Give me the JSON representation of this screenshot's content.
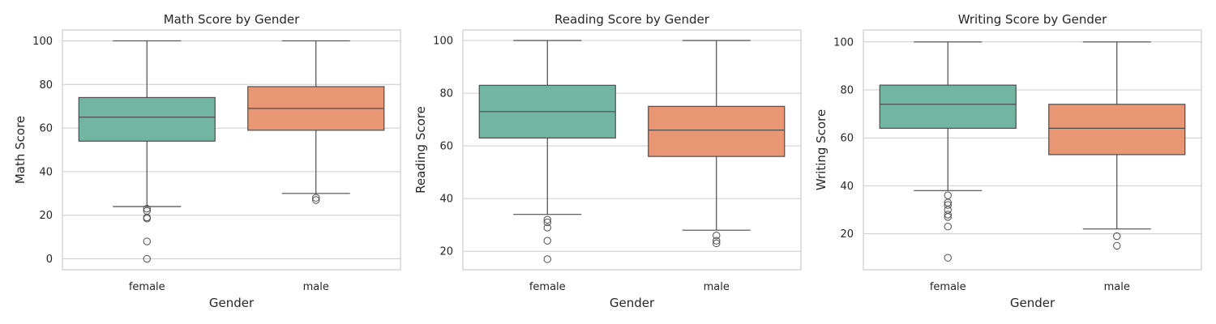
{
  "colors": {
    "female": "#72b6a1",
    "male": "#e99675",
    "line": "#4d4d4d",
    "grid": "#cccccc"
  },
  "chart_data": [
    {
      "type": "box",
      "title": "Math Score by Gender",
      "xlabel": "Gender",
      "ylabel": "Math Score",
      "categories": [
        "female",
        "male"
      ],
      "ylim": [
        -5,
        105
      ],
      "yticks": [
        0,
        20,
        40,
        60,
        80,
        100
      ],
      "boxes": [
        {
          "category": "female",
          "whisker_low": 24,
          "q1": 54,
          "median": 65,
          "q3": 74,
          "whisker_high": 100,
          "outliers": [
            23,
            22,
            19,
            18.5,
            8,
            0
          ]
        },
        {
          "category": "male",
          "whisker_low": 30,
          "q1": 59,
          "median": 69,
          "q3": 79,
          "whisker_high": 100,
          "outliers": [
            28,
            27
          ]
        }
      ]
    },
    {
      "type": "box",
      "title": "Reading Score by Gender",
      "xlabel": "Gender",
      "ylabel": "Reading Score",
      "categories": [
        "female",
        "male"
      ],
      "ylim": [
        13,
        104
      ],
      "yticks": [
        20,
        40,
        60,
        80,
        100
      ],
      "boxes": [
        {
          "category": "female",
          "whisker_low": 34,
          "q1": 63,
          "median": 73,
          "q3": 83,
          "whisker_high": 100,
          "outliers": [
            32,
            31,
            29,
            24,
            17
          ]
        },
        {
          "category": "male",
          "whisker_low": 28,
          "q1": 56,
          "median": 66,
          "q3": 75,
          "whisker_high": 100,
          "outliers": [
            26,
            24,
            23
          ]
        }
      ]
    },
    {
      "type": "box",
      "title": "Writing Score by Gender",
      "xlabel": "Gender",
      "ylabel": "Writing Score",
      "categories": [
        "female",
        "male"
      ],
      "ylim": [
        5,
        105
      ],
      "yticks": [
        20,
        40,
        60,
        80,
        100
      ],
      "boxes": [
        {
          "category": "female",
          "whisker_low": 38,
          "q1": 64,
          "median": 74,
          "q3": 82,
          "whisker_high": 100,
          "outliers": [
            36,
            33,
            32,
            30,
            28,
            27,
            23,
            10
          ]
        },
        {
          "category": "male",
          "whisker_low": 22,
          "q1": 53,
          "median": 64,
          "q3": 74,
          "whisker_high": 100,
          "outliers": [
            19,
            15
          ]
        }
      ]
    }
  ]
}
